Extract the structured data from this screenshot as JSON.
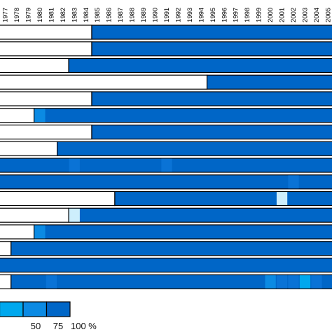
{
  "chart_data": {
    "type": "heatmap",
    "title": "",
    "xlabel": "",
    "ylabel": "",
    "x": [
      "1977",
      "1978",
      "1979",
      "1980",
      "1981",
      "1982",
      "1983",
      "1984",
      "1985",
      "1986",
      "1987",
      "1988",
      "1989",
      "1990",
      "1991",
      "1992",
      "1993",
      "1994",
      "1995",
      "1996",
      "1997",
      "1998",
      "1999",
      "2000",
      "2001",
      "2002",
      "2003",
      "2004",
      "2005"
    ],
    "rows_note_not_rendered": "",
    "rows": [
      {
        "start_year": "1985",
        "exceptions": []
      },
      {
        "start_year": "1985",
        "exceptions": []
      },
      {
        "start_year": "1983",
        "exceptions": []
      },
      {
        "start_year": "1995",
        "exceptions": []
      },
      {
        "start_year": "1985",
        "exceptions": []
      },
      {
        "start_year": "1980",
        "exceptions": [
          {
            "year": "1980",
            "level": 75
          }
        ]
      },
      {
        "start_year": "1985",
        "exceptions": []
      },
      {
        "start_year": "1982",
        "exceptions": []
      },
      {
        "start_year": "1977",
        "exceptions": [
          {
            "year": "1983",
            "level": 90
          },
          {
            "year": "1991",
            "level": 90
          }
        ]
      },
      {
        "start_year": "1977",
        "exceptions": [
          {
            "year": "2002",
            "level": 90
          }
        ]
      },
      {
        "start_year": "1987",
        "exceptions": [
          {
            "year": "2001",
            "level": 25
          }
        ]
      },
      {
        "start_year": "1983",
        "exceptions": [
          {
            "year": "1983",
            "level": 25
          }
        ]
      },
      {
        "start_year": "1980",
        "exceptions": [
          {
            "year": "1980",
            "level": 75
          }
        ]
      },
      {
        "start_year": "1978",
        "exceptions": []
      },
      {
        "start_year": "1977",
        "exceptions": []
      },
      {
        "start_year": "1978",
        "exceptions": [
          {
            "year": "1981",
            "level": 90
          },
          {
            "year": "2000",
            "level": 75
          },
          {
            "year": "2001",
            "level": 90
          },
          {
            "year": "2002",
            "level": 90
          },
          {
            "year": "2003",
            "level": 50
          },
          {
            "year": "2004",
            "level": 90
          }
        ]
      }
    ],
    "legend": {
      "labels": [
        "50",
        "75",
        "100 %"
      ],
      "levels": [
        25,
        50,
        75,
        100
      ]
    },
    "colors": {
      "full": "#0066c7",
      "level_90": "#0a73d6",
      "level_75": "#0b8ae3",
      "level_50": "#00a8ee",
      "level_25": "#cdeefc",
      "empty": "#ffffff",
      "border": "#000000"
    }
  }
}
